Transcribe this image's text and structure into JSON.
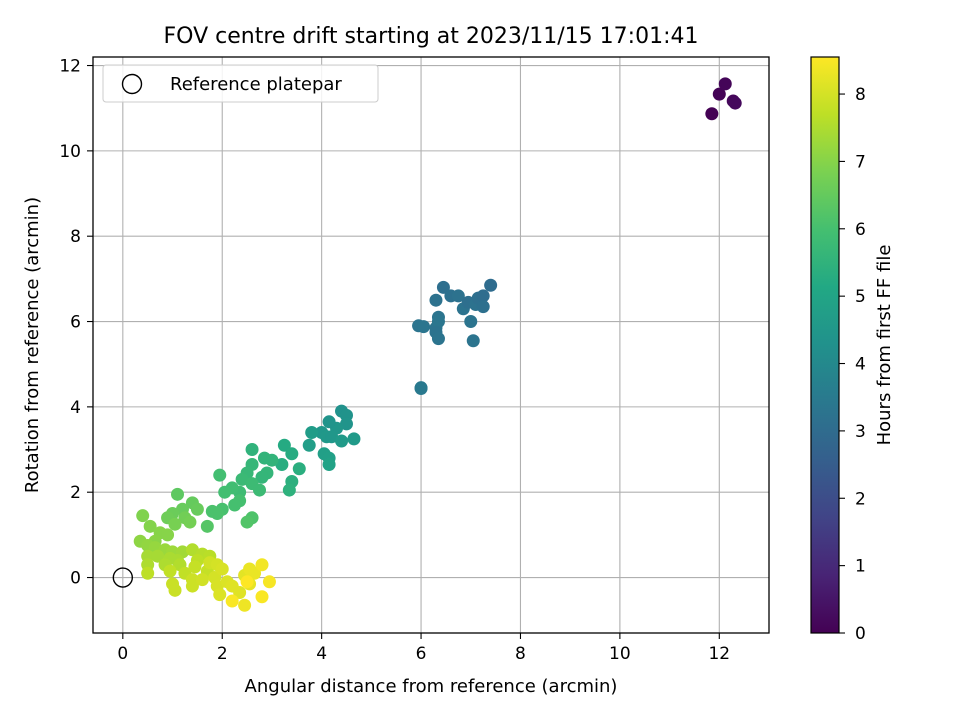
{
  "chart_data": {
    "type": "scatter",
    "title": "FOV centre drift starting at 2023/11/15 17:01:41",
    "xlabel": "Angular distance from reference (arcmin)",
    "ylabel": "Rotation from reference (arcmin)",
    "xlim": [
      -0.6,
      13.0
    ],
    "ylim": [
      -1.3,
      12.2
    ],
    "xticks": [
      "0",
      "2",
      "4",
      "6",
      "8",
      "10",
      "12"
    ],
    "yticks": [
      "0",
      "2",
      "4",
      "6",
      "8",
      "10",
      "12"
    ],
    "grid": true,
    "legend": {
      "position": "top-left",
      "entries": [
        "Reference platepar"
      ]
    },
    "colorbar": {
      "label": "Hours from first FF file",
      "colormap": "viridis",
      "range": [
        0,
        8.55
      ],
      "ticks": [
        "0",
        "1",
        "2",
        "3",
        "4",
        "5",
        "6",
        "7",
        "8"
      ]
    },
    "reference": {
      "x": 0,
      "y": 0
    },
    "points": [
      [
        11.85,
        10.87,
        0.0
      ],
      [
        12.0,
        11.33,
        0.05
      ],
      [
        12.12,
        11.57,
        0.1
      ],
      [
        12.28,
        11.17,
        0.15
      ],
      [
        12.32,
        11.12,
        0.2
      ],
      [
        6.0,
        4.45,
        3.45
      ],
      [
        6.0,
        4.43,
        3.47
      ],
      [
        5.95,
        5.9,
        3.3
      ],
      [
        6.05,
        5.88,
        3.32
      ],
      [
        6.3,
        5.85,
        3.28
      ],
      [
        6.35,
        6.1,
        3.3
      ],
      [
        6.35,
        6.0,
        3.35
      ],
      [
        6.3,
        5.75,
        3.25
      ],
      [
        6.35,
        5.6,
        3.3
      ],
      [
        6.3,
        6.5,
        3.2
      ],
      [
        6.45,
        6.8,
        3.1
      ],
      [
        6.6,
        6.6,
        3.15
      ],
      [
        6.75,
        6.6,
        3.2
      ],
      [
        6.85,
        6.3,
        3.25
      ],
      [
        6.95,
        6.45,
        3.1
      ],
      [
        7.0,
        6.0,
        3.3
      ],
      [
        7.1,
        6.4,
        3.2
      ],
      [
        7.15,
        6.55,
        3.1
      ],
      [
        7.25,
        6.6,
        3.05
      ],
      [
        7.25,
        6.35,
        3.15
      ],
      [
        7.4,
        6.85,
        3.0
      ],
      [
        7.05,
        5.55,
        3.3
      ],
      [
        4.4,
        3.9,
        4.3
      ],
      [
        4.5,
        3.8,
        4.35
      ],
      [
        4.5,
        3.6,
        4.4
      ],
      [
        4.3,
        3.5,
        4.45
      ],
      [
        4.15,
        3.65,
        4.4
      ],
      [
        4.0,
        3.4,
        4.5
      ],
      [
        4.1,
        3.3,
        4.55
      ],
      [
        4.2,
        3.3,
        4.5
      ],
      [
        4.65,
        3.25,
        4.6
      ],
      [
        4.4,
        3.2,
        4.6
      ],
      [
        3.8,
        3.4,
        4.7
      ],
      [
        3.75,
        3.1,
        4.75
      ],
      [
        4.05,
        2.9,
        4.8
      ],
      [
        4.15,
        2.8,
        4.85
      ],
      [
        4.15,
        2.65,
        4.9
      ],
      [
        3.25,
        3.1,
        5.2
      ],
      [
        3.4,
        2.9,
        5.25
      ],
      [
        3.2,
        2.65,
        5.3
      ],
      [
        3.55,
        2.55,
        5.35
      ],
      [
        3.4,
        2.25,
        5.4
      ],
      [
        3.35,
        2.05,
        5.45
      ],
      [
        2.6,
        3.0,
        5.5
      ],
      [
        2.85,
        2.8,
        5.55
      ],
      [
        3.0,
        2.75,
        5.55
      ],
      [
        2.9,
        2.45,
        5.6
      ],
      [
        2.8,
        2.35,
        5.6
      ],
      [
        2.6,
        2.65,
        5.65
      ],
      [
        2.5,
        2.45,
        5.7
      ],
      [
        2.4,
        2.3,
        5.75
      ],
      [
        2.6,
        2.2,
        5.8
      ],
      [
        2.75,
        2.05,
        5.8
      ],
      [
        2.35,
        2.0,
        5.85
      ],
      [
        2.2,
        2.1,
        5.9
      ],
      [
        2.05,
        2.0,
        5.95
      ],
      [
        1.95,
        2.4,
        5.95
      ],
      [
        2.35,
        1.8,
        6.0
      ],
      [
        2.25,
        1.7,
        6.0
      ],
      [
        2.0,
        1.6,
        6.05
      ],
      [
        1.8,
        1.55,
        6.1
      ],
      [
        1.9,
        1.5,
        6.1
      ],
      [
        2.6,
        1.4,
        6.15
      ],
      [
        2.5,
        1.3,
        6.2
      ],
      [
        1.7,
        1.2,
        6.25
      ],
      [
        1.1,
        1.95,
        6.4
      ],
      [
        1.4,
        1.75,
        6.5
      ],
      [
        1.5,
        1.6,
        6.55
      ],
      [
        1.2,
        1.6,
        6.55
      ],
      [
        1.0,
        1.5,
        6.6
      ],
      [
        0.9,
        1.4,
        6.65
      ],
      [
        1.25,
        1.4,
        6.7
      ],
      [
        1.35,
        1.3,
        6.75
      ],
      [
        1.05,
        1.25,
        6.8
      ],
      [
        0.4,
        1.45,
        6.9
      ],
      [
        0.55,
        1.2,
        6.95
      ],
      [
        0.75,
        1.05,
        7.0
      ],
      [
        0.9,
        1.0,
        7.0
      ],
      [
        0.65,
        0.85,
        7.05
      ],
      [
        0.35,
        0.85,
        7.1
      ],
      [
        0.5,
        0.75,
        7.15
      ],
      [
        0.65,
        0.7,
        7.2
      ],
      [
        0.85,
        0.65,
        7.25
      ],
      [
        1.0,
        0.6,
        7.3
      ],
      [
        1.2,
        0.6,
        7.35
      ],
      [
        0.5,
        0.5,
        7.4
      ],
      [
        0.7,
        0.5,
        7.4
      ],
      [
        0.95,
        0.45,
        7.45
      ],
      [
        1.1,
        0.4,
        7.45
      ],
      [
        0.5,
        0.3,
        7.5
      ],
      [
        0.85,
        0.3,
        7.5
      ],
      [
        1.15,
        0.3,
        7.55
      ],
      [
        1.4,
        0.65,
        7.55
      ],
      [
        1.6,
        0.55,
        7.6
      ],
      [
        1.75,
        0.5,
        7.65
      ],
      [
        1.5,
        0.4,
        7.7
      ],
      [
        0.5,
        0.1,
        7.7
      ],
      [
        0.95,
        0.15,
        7.75
      ],
      [
        1.25,
        0.1,
        7.75
      ],
      [
        1.45,
        0.25,
        7.8
      ],
      [
        1.7,
        0.15,
        7.8
      ],
      [
        1.0,
        -0.15,
        7.85
      ],
      [
        1.05,
        -0.3,
        7.85
      ],
      [
        1.4,
        -0.05,
        7.9
      ],
      [
        1.4,
        -0.2,
        7.9
      ],
      [
        1.6,
        -0.05,
        7.95
      ],
      [
        1.75,
        0.35,
        7.95
      ],
      [
        1.9,
        0.3,
        8.0
      ],
      [
        1.85,
        0.0,
        8.0
      ],
      [
        2.0,
        0.2,
        8.05
      ],
      [
        1.9,
        -0.2,
        8.05
      ],
      [
        1.95,
        -0.4,
        8.1
      ],
      [
        2.1,
        -0.1,
        8.1
      ],
      [
        2.2,
        -0.2,
        8.15
      ],
      [
        2.35,
        -0.35,
        8.15
      ],
      [
        2.45,
        0.05,
        8.2
      ],
      [
        2.55,
        -0.15,
        8.25
      ],
      [
        2.55,
        0.2,
        8.3
      ],
      [
        2.65,
        0.1,
        8.3
      ],
      [
        2.45,
        -0.65,
        8.35
      ],
      [
        2.8,
        0.3,
        8.4
      ],
      [
        2.95,
        -0.1,
        8.45
      ],
      [
        2.8,
        -0.45,
        8.5
      ],
      [
        2.2,
        -0.55,
        8.5
      ],
      [
        2.5,
        -0.1,
        8.55
      ]
    ]
  }
}
